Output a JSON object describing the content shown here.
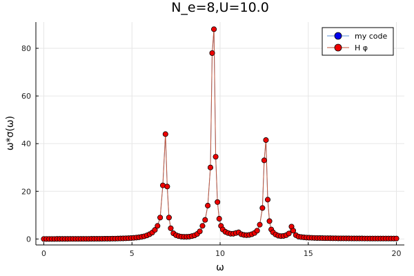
{
  "chart_data": {
    "type": "line",
    "title": "N_e=8,U=10.0",
    "xlabel": "ω",
    "ylabel": "ω*σ(ω)",
    "xlim": [
      -0.45,
      20.45
    ],
    "ylim": [
      -2.5,
      91
    ],
    "xticks": [
      0,
      5,
      10,
      15,
      20
    ],
    "xtick_labels": [
      "0",
      "5",
      "10",
      "15",
      "20"
    ],
    "yticks": [
      0,
      20,
      40,
      60,
      80
    ],
    "ytick_labels": [
      "0",
      "20",
      "40",
      "60",
      "80"
    ],
    "grid": true,
    "legend_position": "top-right",
    "x": [
      0,
      0.15,
      0.3,
      0.45,
      0.6,
      0.75,
      0.9,
      1.05,
      1.2,
      1.35,
      1.5,
      1.65,
      1.8,
      1.95,
      2.1,
      2.25,
      2.4,
      2.55,
      2.7,
      2.85,
      3.0,
      3.15,
      3.3,
      3.45,
      3.6,
      3.75,
      3.9,
      4.05,
      4.2,
      4.35,
      4.5,
      4.65,
      4.8,
      4.95,
      5.1,
      5.25,
      5.4,
      5.55,
      5.7,
      5.85,
      6.0,
      6.15,
      6.3,
      6.45,
      6.6,
      6.75,
      6.9,
      7.0,
      7.1,
      7.2,
      7.35,
      7.5,
      7.65,
      7.8,
      7.95,
      8.1,
      8.25,
      8.4,
      8.55,
      8.7,
      8.85,
      9.0,
      9.15,
      9.3,
      9.45,
      9.55,
      9.65,
      9.75,
      9.85,
      9.95,
      10.05,
      10.15,
      10.3,
      10.45,
      10.6,
      10.75,
      10.9,
      11.05,
      11.2,
      11.35,
      11.5,
      11.65,
      11.8,
      11.95,
      12.1,
      12.25,
      12.4,
      12.5,
      12.6,
      12.7,
      12.8,
      12.9,
      13.0,
      13.15,
      13.3,
      13.45,
      13.6,
      13.75,
      13.9,
      14.05,
      14.15,
      14.3,
      14.45,
      14.6,
      14.75,
      14.9,
      15.05,
      15.2,
      15.35,
      15.5,
      15.65,
      15.8,
      15.95,
      16.1,
      16.25,
      16.4,
      16.55,
      16.7,
      16.85,
      17.0,
      17.15,
      17.3,
      17.45,
      17.6,
      17.75,
      17.9,
      18.05,
      18.2,
      18.35,
      18.5,
      18.65,
      18.8,
      18.95,
      19.1,
      19.25,
      19.4,
      19.55,
      19.7,
      19.85,
      20.0
    ],
    "series": [
      {
        "name": "my code",
        "color": "#0000ee",
        "line_color": "#5a8fd6",
        "values": [
          0.02,
          0.02,
          0.02,
          0.02,
          0.02,
          0.03,
          0.03,
          0.03,
          0.03,
          0.03,
          0.04,
          0.04,
          0.04,
          0.05,
          0.05,
          0.05,
          0.06,
          0.06,
          0.07,
          0.07,
          0.08,
          0.09,
          0.1,
          0.11,
          0.12,
          0.13,
          0.15,
          0.17,
          0.19,
          0.22,
          0.25,
          0.29,
          0.34,
          0.4,
          0.48,
          0.58,
          0.72,
          0.9,
          1.15,
          1.5,
          2.0,
          2.7,
          3.8,
          5.5,
          9.0,
          22.5,
          44.0,
          22.0,
          9.0,
          4.5,
          2.4,
          1.6,
          1.2,
          1.0,
          0.9,
          0.9,
          1.0,
          1.2,
          1.5,
          2.1,
          3.2,
          5.5,
          8.0,
          14.0,
          30.0,
          78.0,
          88.0,
          34.5,
          15.5,
          8.5,
          5.5,
          4.0,
          3.0,
          2.5,
          2.2,
          2.2,
          2.5,
          2.8,
          2.0,
          1.7,
          1.6,
          1.7,
          2.0,
          2.5,
          3.5,
          6.0,
          13.0,
          33.0,
          41.5,
          16.5,
          7.5,
          4.0,
          2.8,
          1.9,
          1.4,
          1.2,
          1.3,
          1.6,
          2.3,
          5.2,
          3.5,
          1.6,
          1.0,
          0.8,
          0.7,
          0.6,
          0.55,
          0.5,
          0.45,
          0.42,
          0.4,
          0.37,
          0.35,
          0.33,
          0.32,
          0.3,
          0.29,
          0.28,
          0.27,
          0.26,
          0.25,
          0.25,
          0.24,
          0.23,
          0.23,
          0.22,
          0.22,
          0.21,
          0.21,
          0.2,
          0.2,
          0.2,
          0.2,
          0.2,
          0.2,
          0.2,
          0.2,
          0.2,
          0.2,
          0.2
        ]
      },
      {
        "name": "H φ",
        "color": "#ee0000",
        "line_color": "#c0563a",
        "values": [
          0.02,
          0.02,
          0.02,
          0.02,
          0.02,
          0.03,
          0.03,
          0.03,
          0.03,
          0.03,
          0.04,
          0.04,
          0.04,
          0.05,
          0.05,
          0.05,
          0.06,
          0.06,
          0.07,
          0.07,
          0.08,
          0.09,
          0.1,
          0.11,
          0.12,
          0.13,
          0.15,
          0.17,
          0.19,
          0.22,
          0.25,
          0.29,
          0.34,
          0.4,
          0.48,
          0.58,
          0.72,
          0.9,
          1.15,
          1.5,
          2.0,
          2.7,
          3.8,
          5.5,
          9.0,
          22.5,
          44.0,
          22.0,
          9.0,
          4.5,
          2.4,
          1.6,
          1.2,
          1.0,
          0.9,
          0.9,
          1.0,
          1.2,
          1.5,
          2.1,
          3.2,
          5.5,
          8.0,
          14.0,
          30.0,
          78.0,
          88.0,
          34.5,
          15.5,
          8.5,
          5.5,
          4.0,
          3.0,
          2.5,
          2.2,
          2.2,
          2.5,
          2.8,
          2.0,
          1.7,
          1.6,
          1.7,
          2.0,
          2.5,
          3.5,
          6.0,
          13.0,
          33.0,
          41.5,
          16.5,
          7.5,
          4.0,
          2.8,
          1.9,
          1.4,
          1.2,
          1.3,
          1.6,
          2.3,
          5.2,
          3.5,
          1.6,
          1.0,
          0.8,
          0.7,
          0.6,
          0.55,
          0.5,
          0.45,
          0.42,
          0.4,
          0.37,
          0.35,
          0.33,
          0.32,
          0.3,
          0.29,
          0.28,
          0.27,
          0.26,
          0.25,
          0.25,
          0.24,
          0.23,
          0.23,
          0.22,
          0.22,
          0.21,
          0.21,
          0.2,
          0.2,
          0.2,
          0.2,
          0.2,
          0.2,
          0.2,
          0.2,
          0.2,
          0.2,
          0.2
        ]
      }
    ]
  }
}
